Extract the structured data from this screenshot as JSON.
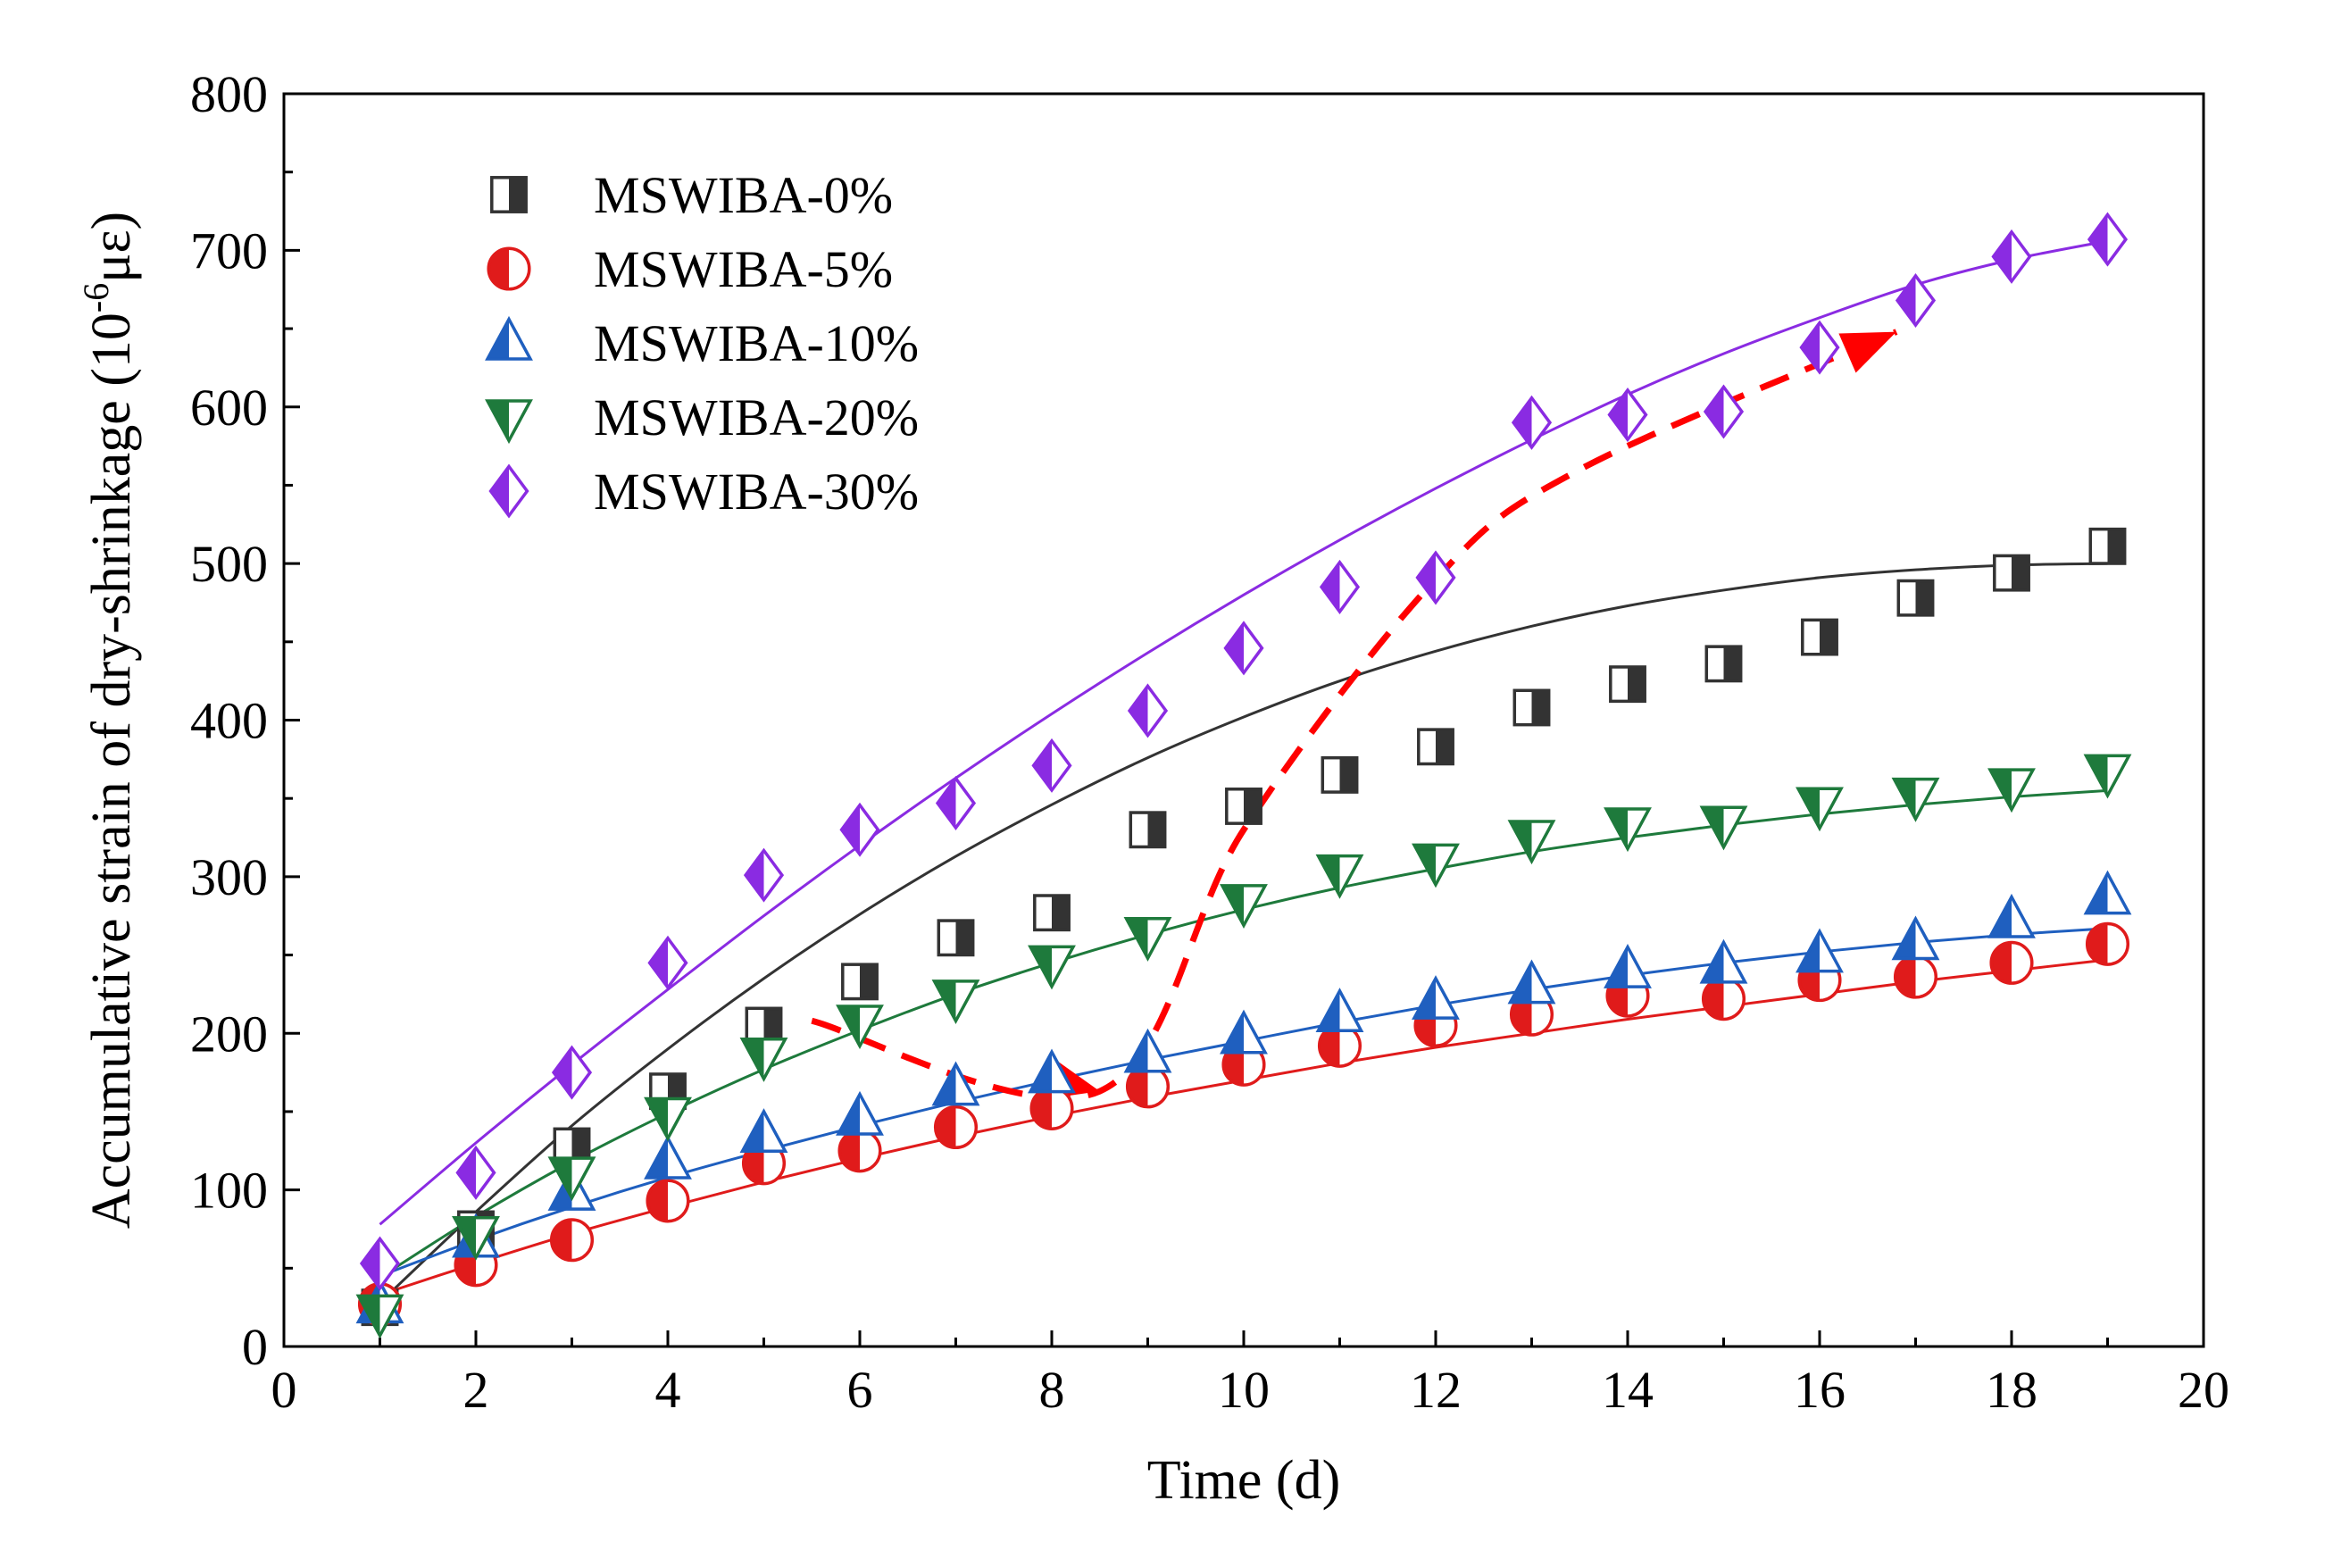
{
  "chart_data": {
    "type": "scatter",
    "title": "",
    "xlabel": "Time (d)",
    "ylabel_main": "Accumulative strain of dry-shrinkage (10",
    "ylabel_sup": "-6",
    "ylabel_tail": "με)",
    "xlim": [
      0,
      20
    ],
    "ylim": [
      0,
      800
    ],
    "x_ticks": [
      0,
      2,
      4,
      6,
      8,
      10,
      12,
      14,
      16,
      18,
      20
    ],
    "y_ticks": [
      0,
      100,
      200,
      300,
      400,
      500,
      600,
      700,
      800
    ],
    "x_tick_labels": [
      "0",
      "2",
      "4",
      "6",
      "8",
      "10",
      "12",
      "14",
      "16",
      "18",
      "20"
    ],
    "y_tick_labels": [
      "0",
      "100",
      "200",
      "300",
      "400",
      "500",
      "600",
      "700",
      "800"
    ],
    "legend_position": "top-left",
    "x": [
      1,
      2,
      3,
      4,
      5,
      6,
      7,
      8,
      9,
      10,
      11,
      12,
      13,
      14,
      15,
      16,
      17,
      18,
      19
    ],
    "series": [
      {
        "name": "MSWIBA-0%",
        "marker": "square",
        "color": "#333333",
        "values": [
          25,
          75,
          128,
          163,
          205,
          233,
          261,
          277,
          330,
          345,
          365,
          383,
          408,
          423,
          436,
          453,
          478,
          494,
          511
        ],
        "fit": [
          28,
          86,
          141,
          190,
          235,
          276,
          313,
          346,
          376,
          402,
          425,
          444,
          460,
          473,
          483,
          491,
          496,
          499,
          500
        ]
      },
      {
        "name": "MSWIBA-5%",
        "marker": "circle",
        "color": "#e01b1b",
        "values": [
          27,
          52,
          68,
          93,
          117,
          125,
          140,
          152,
          166,
          180,
          192,
          205,
          212,
          224,
          222,
          234,
          236,
          245,
          257
        ],
        "fit": [
          33,
          53,
          72,
          89,
          105,
          120,
          134,
          147,
          159,
          170,
          181,
          191,
          200,
          209,
          217,
          225,
          233,
          240,
          247
        ]
      },
      {
        "name": "MSWIBA-10%",
        "marker": "triangle-up",
        "color": "#1f5fbf",
        "values": [
          26,
          68,
          98,
          118,
          135,
          146,
          165,
          173,
          186,
          198,
          212,
          220,
          230,
          240,
          243,
          250,
          258,
          272,
          287
        ],
        "fit": [
          45,
          68,
          89,
          108,
          125,
          141,
          156,
          170,
          183,
          195,
          207,
          218,
          228,
          237,
          245,
          252,
          258,
          263,
          267
        ]
      },
      {
        "name": "MSWIBA-20%",
        "marker": "triangle-down",
        "color": "#1e7a3c",
        "values": [
          22,
          72,
          110,
          148,
          186,
          207,
          223,
          245,
          263,
          284,
          303,
          310,
          325,
          333,
          334,
          346,
          352,
          358,
          367
        ],
        "fit": [
          44,
          83,
          118,
          149,
          177,
          202,
          225,
          245,
          263,
          279,
          293,
          305,
          316,
          325,
          333,
          340,
          346,
          351,
          355
        ]
      },
      {
        "name": "MSWIBA-30%",
        "marker": "diamond",
        "color": "#8a2be2",
        "values": [
          53,
          111,
          175,
          245,
          301,
          330,
          347,
          371,
          406,
          446,
          485,
          491,
          590,
          595,
          597,
          638,
          668,
          696,
          707
        ],
        "fit": [
          78,
          130,
          180,
          228,
          275,
          320,
          363,
          404,
          443,
          480,
          515,
          548,
          579,
          608,
          634,
          657,
          678,
          694,
          706
        ]
      }
    ],
    "annotations": [
      {
        "kind": "dashed-arrow",
        "color": "#ff0000",
        "points": [
          [
            5.5,
            208
          ],
          [
            8.5,
            163
          ],
          [
            10,
            330
          ],
          [
            12,
            490
          ],
          [
            13.5,
            560
          ],
          [
            16.8,
            648
          ]
        ],
        "arrowheads_at": [
          [
            8.5,
            163
          ],
          [
            16.8,
            648
          ]
        ]
      }
    ]
  }
}
